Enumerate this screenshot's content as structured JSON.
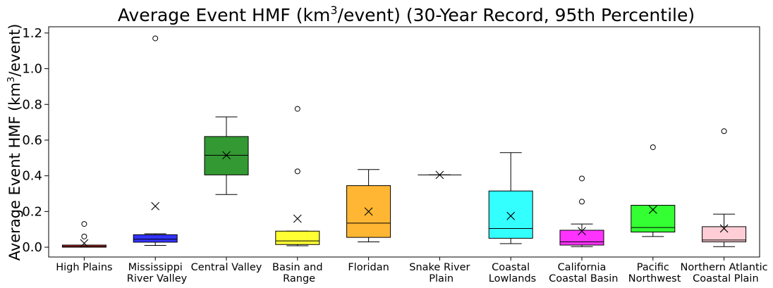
{
  "chart_data": {
    "type": "box",
    "title": {
      "main": "Average Event HMF (km",
      "sup": "3",
      "rest": "/event) (30-Year Record, 95th Percentile)"
    },
    "ylabel": {
      "main": "Average Event HMF (km",
      "sup": "3",
      "rest": "/event)"
    },
    "ylim": [
      -0.055,
      1.235
    ],
    "yticks": [
      "0.0",
      "0.2",
      "0.4",
      "0.6",
      "0.8",
      "1.0",
      "1.2"
    ],
    "grid": false,
    "boxes": [
      {
        "category": [
          "High Plains"
        ],
        "color": "#ff0000",
        "q1": 0.0,
        "median": 0.005,
        "q3": 0.012,
        "whisker_low": 0.0,
        "whisker_high": 0.012,
        "mean": 0.022,
        "outliers": [
          0.06,
          0.13
        ]
      },
      {
        "category": [
          "Mississippi",
          " River Valley"
        ],
        "color": "#0000ff",
        "q1": 0.028,
        "median": 0.045,
        "q3": 0.07,
        "whisker_low": 0.01,
        "whisker_high": 0.075,
        "mean": 0.23,
        "outliers": [
          1.17
        ]
      },
      {
        "category": [
          "Central Valley"
        ],
        "color": "#008000",
        "q1": 0.405,
        "median": 0.515,
        "q3": 0.62,
        "whisker_low": 0.295,
        "whisker_high": 0.73,
        "mean": 0.515,
        "outliers": []
      },
      {
        "category": [
          "Basin and",
          " Range"
        ],
        "color": "#ffff00",
        "q1": 0.015,
        "median": 0.035,
        "q3": 0.09,
        "whisker_low": 0.008,
        "whisker_high": 0.09,
        "mean": 0.16,
        "outliers": [
          0.425,
          0.775
        ]
      },
      {
        "category": [
          "Floridan"
        ],
        "color": "#ffa500",
        "q1": 0.055,
        "median": 0.135,
        "q3": 0.345,
        "whisker_low": 0.03,
        "whisker_high": 0.435,
        "mean": 0.2,
        "outliers": []
      },
      {
        "category": [
          "Snake River",
          " Plain"
        ],
        "color": "#8b4513",
        "q1": 0.405,
        "median": 0.405,
        "q3": 0.405,
        "whisker_low": 0.405,
        "whisker_high": 0.405,
        "mean": 0.405,
        "outliers": []
      },
      {
        "category": [
          "Coastal",
          " Lowlands"
        ],
        "color": "#00ffff",
        "q1": 0.05,
        "median": 0.105,
        "q3": 0.315,
        "whisker_low": 0.02,
        "whisker_high": 0.53,
        "mean": 0.175,
        "outliers": []
      },
      {
        "category": [
          "California",
          " Coastal Basin"
        ],
        "color": "#ff00ff",
        "q1": 0.012,
        "median": 0.03,
        "q3": 0.095,
        "whisker_low": 0.003,
        "whisker_high": 0.13,
        "mean": 0.09,
        "outliers": [
          0.255,
          0.385
        ]
      },
      {
        "category": [
          "Pacific",
          " Northwest"
        ],
        "color": "#00ff00",
        "q1": 0.085,
        "median": 0.11,
        "q3": 0.235,
        "whisker_low": 0.06,
        "whisker_high": 0.235,
        "mean": 0.21,
        "outliers": [
          0.56
        ]
      },
      {
        "category": [
          "Northern Atlantic",
          " Coastal Plain"
        ],
        "color": "#ffc0cb",
        "q1": 0.03,
        "median": 0.04,
        "q3": 0.115,
        "whisker_low": 0.003,
        "whisker_high": 0.185,
        "mean": 0.105,
        "outliers": [
          0.65
        ]
      }
    ]
  }
}
